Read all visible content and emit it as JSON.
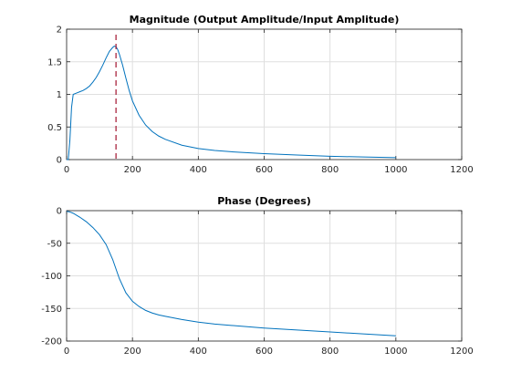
{
  "chart_data": [
    {
      "type": "line",
      "title": "Magnitude (Output Amplitude/Input Amplitude)",
      "xlabel": "",
      "ylabel": "",
      "xlim": [
        0,
        1200
      ],
      "ylim": [
        0,
        2
      ],
      "xticks": [
        0,
        200,
        400,
        600,
        800,
        1000,
        1200
      ],
      "yticks": [
        0,
        0.5,
        1,
        1.5,
        2
      ],
      "grid": true,
      "line_color": "#0072bd",
      "marker_color": "#a2142f",
      "series": [
        {
          "x": [
            0,
            5,
            10,
            15,
            20,
            30,
            40,
            50,
            60,
            70,
            80,
            90,
            100,
            110,
            120,
            130,
            140,
            145,
            150,
            155,
            160,
            170,
            180,
            190,
            200,
            220,
            240,
            260,
            280,
            300,
            350,
            400,
            450,
            500,
            600,
            700,
            800,
            900,
            1000
          ],
          "values": [
            0,
            0,
            0.3,
            0.8,
            1.0,
            1.02,
            1.04,
            1.06,
            1.09,
            1.13,
            1.19,
            1.26,
            1.35,
            1.45,
            1.56,
            1.66,
            1.72,
            1.74,
            1.73,
            1.69,
            1.62,
            1.45,
            1.25,
            1.06,
            0.9,
            0.68,
            0.53,
            0.43,
            0.36,
            0.31,
            0.22,
            0.17,
            0.14,
            0.12,
            0.09,
            0.07,
            0.05,
            0.04,
            0.03
          ]
        }
      ],
      "vertical_marker_x": 150
    },
    {
      "type": "line",
      "title": "Phase (Degrees)",
      "xlabel": "",
      "ylabel": "",
      "xlim": [
        0,
        1200
      ],
      "ylim": [
        -200,
        0
      ],
      "xticks": [
        0,
        200,
        400,
        600,
        800,
        1000,
        1200
      ],
      "yticks": [
        0,
        -50,
        -100,
        -150,
        -200
      ],
      "grid": true,
      "line_color": "#0072bd",
      "series": [
        {
          "x": [
            0,
            10,
            20,
            40,
            60,
            80,
            100,
            120,
            140,
            160,
            180,
            200,
            220,
            240,
            260,
            280,
            300,
            350,
            400,
            450,
            500,
            600,
            700,
            800,
            900,
            1000
          ],
          "values": [
            -1,
            -2,
            -4,
            -10,
            -17,
            -26,
            -37,
            -52,
            -75,
            -104,
            -126,
            -139,
            -147,
            -153,
            -157,
            -160,
            -162,
            -167,
            -171,
            -174,
            -176,
            -180,
            -183,
            -186,
            -189,
            -192
          ]
        }
      ]
    }
  ]
}
